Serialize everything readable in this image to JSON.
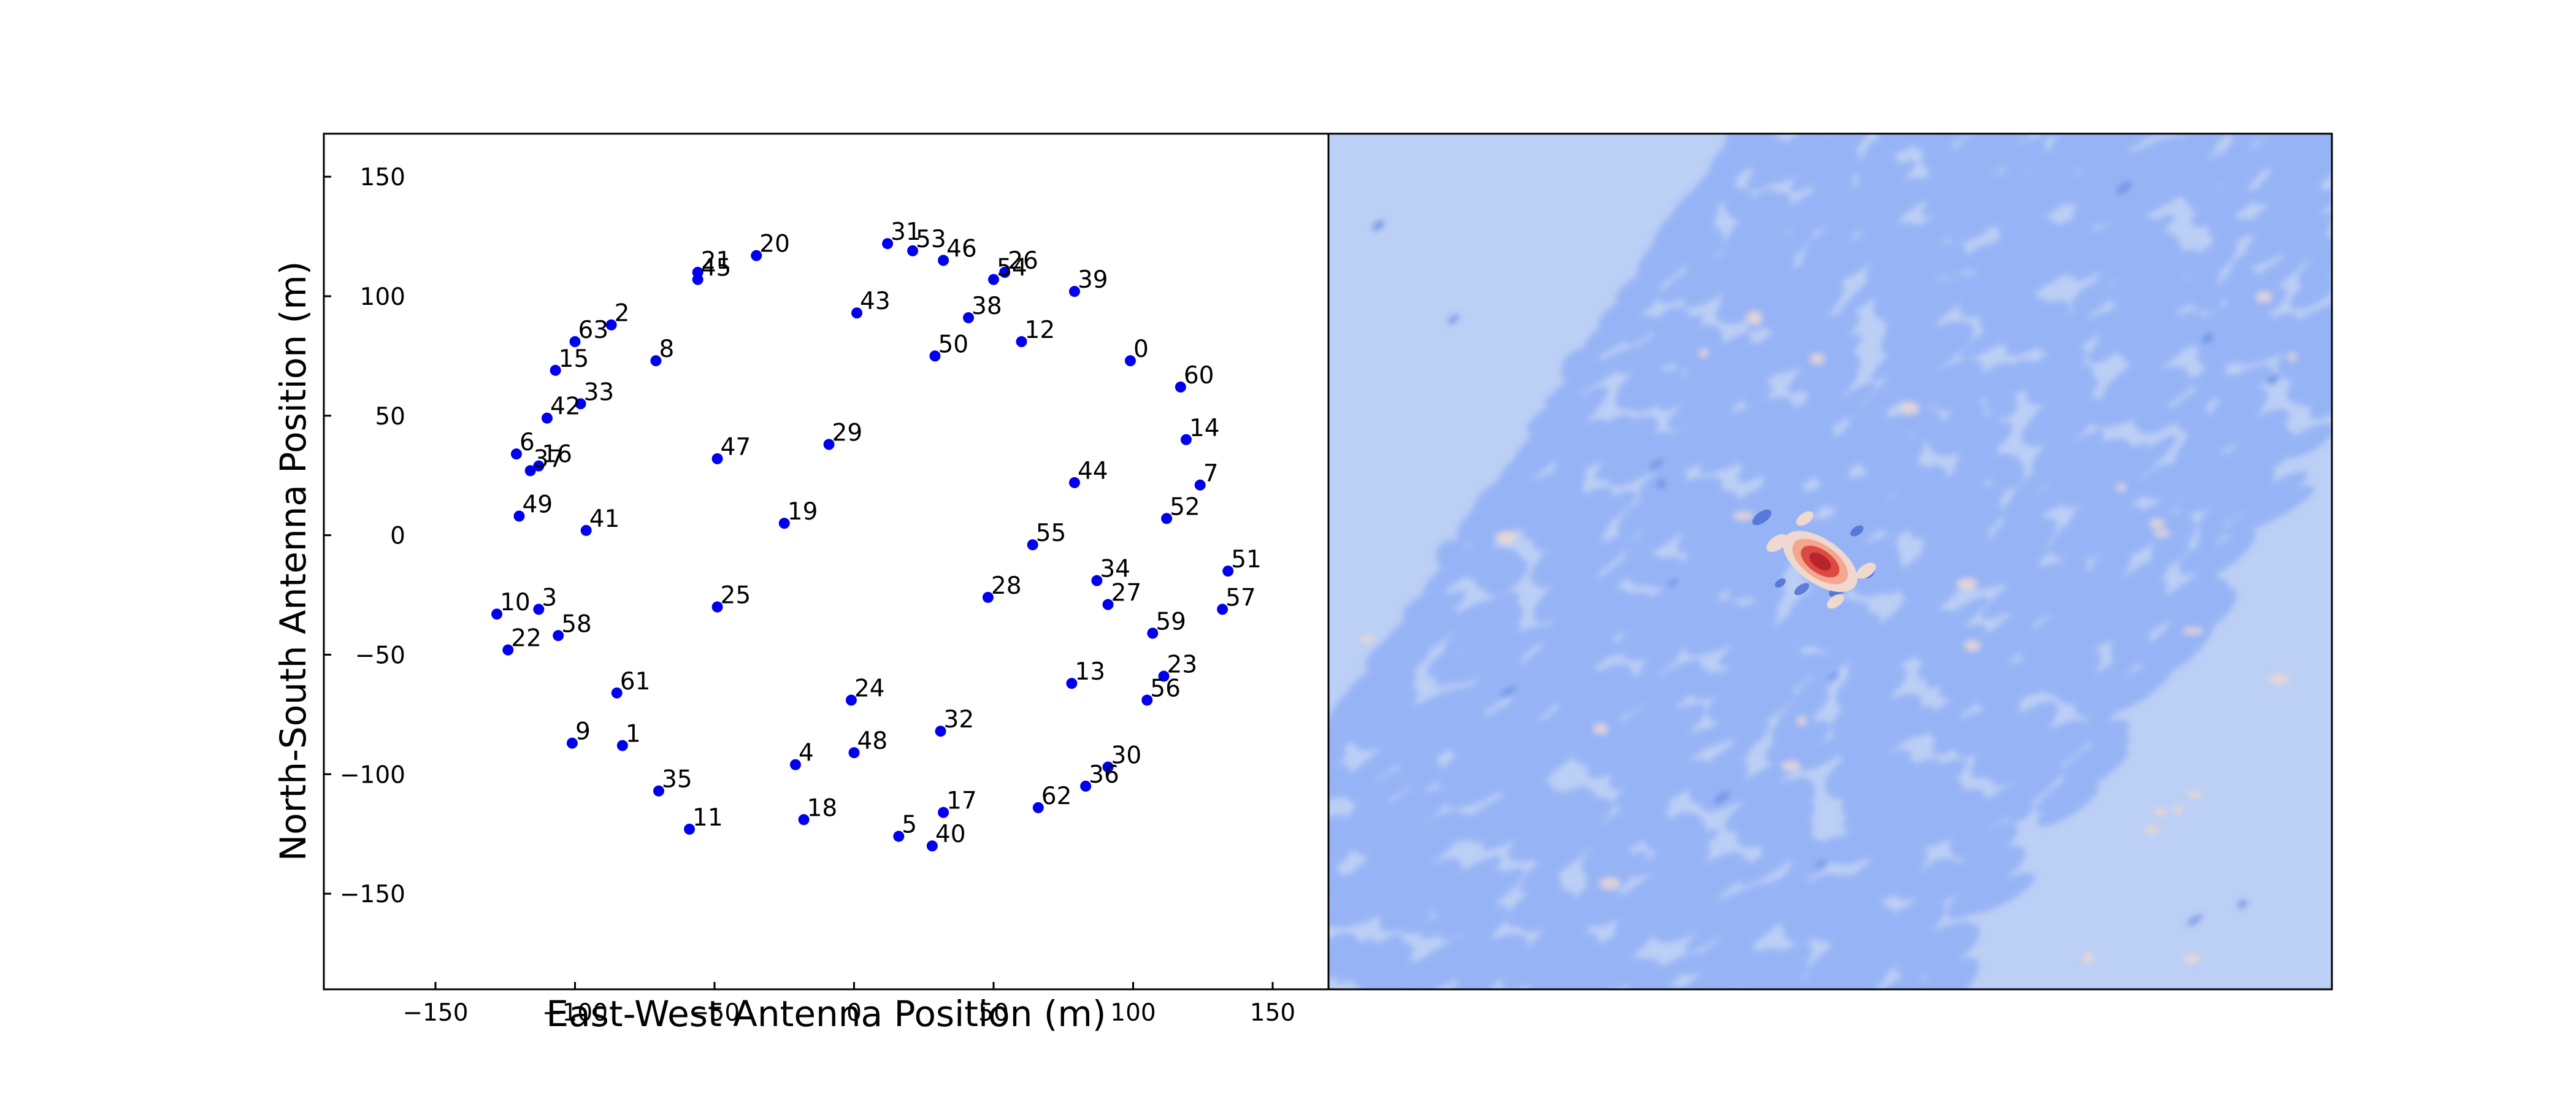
{
  "chart_data": [
    {
      "type": "scatter",
      "title": "",
      "xlabel": "East-West Antenna Position (m)",
      "ylabel": "North-South Antenna Position (m)",
      "xlim": [
        -190,
        170
      ],
      "ylim": [
        -190,
        168
      ],
      "xticks": [
        -150,
        -100,
        -50,
        0,
        50,
        100,
        150
      ],
      "yticks": [
        -150,
        -100,
        -50,
        0,
        50,
        100,
        150
      ],
      "grid": false,
      "point_color": "#0000ee",
      "points": [
        {
          "label": "0",
          "x": 99,
          "y": 73
        },
        {
          "label": "1",
          "x": -83,
          "y": -88
        },
        {
          "label": "2",
          "x": -87,
          "y": 88
        },
        {
          "label": "3",
          "x": -113,
          "y": -31
        },
        {
          "label": "4",
          "x": -21,
          "y": -96
        },
        {
          "label": "5",
          "x": 16,
          "y": -126
        },
        {
          "label": "6",
          "x": -121,
          "y": 34
        },
        {
          "label": "7",
          "x": 124,
          "y": 21
        },
        {
          "label": "8",
          "x": -71,
          "y": 73
        },
        {
          "label": "9",
          "x": -101,
          "y": -87
        },
        {
          "label": "10",
          "x": -128,
          "y": -33
        },
        {
          "label": "11",
          "x": -59,
          "y": -123
        },
        {
          "label": "12",
          "x": 60,
          "y": 81
        },
        {
          "label": "13",
          "x": 78,
          "y": -62
        },
        {
          "label": "14",
          "x": 119,
          "y": 40
        },
        {
          "label": "15",
          "x": -107,
          "y": 69
        },
        {
          "label": "16",
          "x": -113,
          "y": 29
        },
        {
          "label": "17",
          "x": 32,
          "y": -116
        },
        {
          "label": "18",
          "x": -18,
          "y": -119
        },
        {
          "label": "19",
          "x": -25,
          "y": 5
        },
        {
          "label": "20",
          "x": -35,
          "y": 117
        },
        {
          "label": "21",
          "x": -56,
          "y": 110
        },
        {
          "label": "22",
          "x": -124,
          "y": -48
        },
        {
          "label": "23",
          "x": 111,
          "y": -59
        },
        {
          "label": "24",
          "x": -1,
          "y": -69
        },
        {
          "label": "25",
          "x": -49,
          "y": -30
        },
        {
          "label": "26",
          "x": 54,
          "y": 110
        },
        {
          "label": "27",
          "x": 91,
          "y": -29
        },
        {
          "label": "28",
          "x": 48,
          "y": -26
        },
        {
          "label": "29",
          "x": -9,
          "y": 38
        },
        {
          "label": "30",
          "x": 91,
          "y": -97
        },
        {
          "label": "31",
          "x": 12,
          "y": 122
        },
        {
          "label": "32",
          "x": 31,
          "y": -82
        },
        {
          "label": "33",
          "x": -98,
          "y": 55
        },
        {
          "label": "34",
          "x": 87,
          "y": -19
        },
        {
          "label": "35",
          "x": -70,
          "y": -107
        },
        {
          "label": "36",
          "x": 83,
          "y": -105
        },
        {
          "label": "37",
          "x": -116,
          "y": 27
        },
        {
          "label": "38",
          "x": 41,
          "y": 91
        },
        {
          "label": "39",
          "x": 79,
          "y": 102
        },
        {
          "label": "40",
          "x": 28,
          "y": -130
        },
        {
          "label": "41",
          "x": -96,
          "y": 2
        },
        {
          "label": "42",
          "x": -110,
          "y": 49
        },
        {
          "label": "43",
          "x": 1,
          "y": 93
        },
        {
          "label": "44",
          "x": 79,
          "y": 22
        },
        {
          "label": "45",
          "x": -56,
          "y": 107
        },
        {
          "label": "46",
          "x": 32,
          "y": 115
        },
        {
          "label": "47",
          "x": -49,
          "y": 32
        },
        {
          "label": "48",
          "x": 0,
          "y": -91
        },
        {
          "label": "49",
          "x": -120,
          "y": 8
        },
        {
          "label": "50",
          "x": 29,
          "y": 75
        },
        {
          "label": "51",
          "x": 134,
          "y": -15
        },
        {
          "label": "52",
          "x": 112,
          "y": 7
        },
        {
          "label": "53",
          "x": 21,
          "y": 119
        },
        {
          "label": "54",
          "x": 50,
          "y": 107
        },
        {
          "label": "55",
          "x": 64,
          "y": -4
        },
        {
          "label": "56",
          "x": 105,
          "y": -69
        },
        {
          "label": "57",
          "x": 132,
          "y": -31
        },
        {
          "label": "58",
          "x": -106,
          "y": -42
        },
        {
          "label": "59",
          "x": 107,
          "y": -41
        },
        {
          "label": "60",
          "x": 117,
          "y": 62
        },
        {
          "label": "61",
          "x": -85,
          "y": -66
        },
        {
          "label": "62",
          "x": 66,
          "y": -114
        },
        {
          "label": "63",
          "x": -100,
          "y": 81
        }
      ]
    },
    {
      "type": "heatmap",
      "title": "",
      "xlabel": "",
      "ylabel": "",
      "axes_ticks": false,
      "palette": {
        "background": "#bccff5",
        "low": "#96b4f5",
        "lower": "#6f90e5",
        "lowest": "#4d6fd1",
        "high": "#eed8cf",
        "higher": "#f4a78f",
        "peak": "#dd4a44",
        "core": "#b6242c"
      },
      "peak_position": "slightly left of and below center"
    }
  ]
}
